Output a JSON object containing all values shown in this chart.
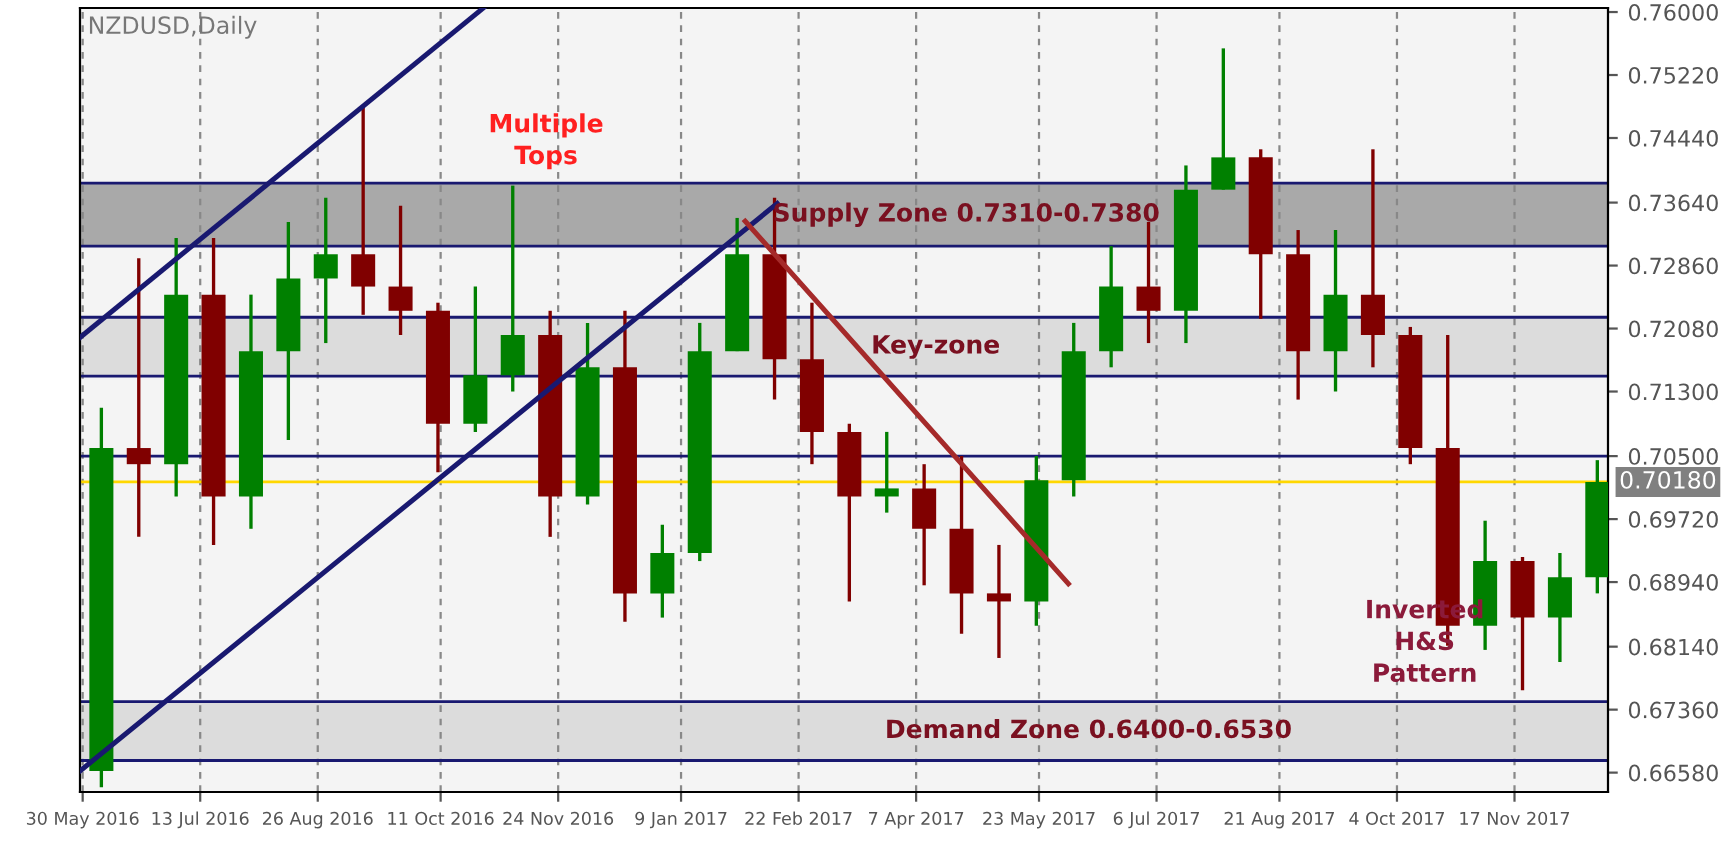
{
  "chart_data": {
    "type": "candlestick",
    "title": "NZDUSD,Daily",
    "x": [
      "2016-06-06",
      "2016-06-20",
      "2016-07-04",
      "2016-07-18",
      "2016-08-01",
      "2016-08-15",
      "2016-08-29",
      "2016-09-12",
      "2016-09-26",
      "2016-10-10",
      "2016-10-24",
      "2016-11-07",
      "2016-11-21",
      "2016-12-05",
      "2016-12-19",
      "2017-01-02",
      "2017-01-16",
      "2017-01-30",
      "2017-02-13",
      "2017-02-27",
      "2017-03-13",
      "2017-03-27",
      "2017-04-10",
      "2017-04-24",
      "2017-05-08",
      "2017-05-22",
      "2017-06-05",
      "2017-06-19",
      "2017-07-03",
      "2017-07-17",
      "2017-07-31",
      "2017-08-14",
      "2017-08-28",
      "2017-09-11",
      "2017-09-25",
      "2017-10-09",
      "2017-10-23",
      "2017-11-06",
      "2017-11-20",
      "2017-12-04",
      "2017-12-18"
    ],
    "ohlc": [
      [
        0.666,
        0.711,
        0.664,
        0.706
      ],
      [
        0.706,
        0.7295,
        0.695,
        0.704
      ],
      [
        0.704,
        0.732,
        0.7,
        0.725
      ],
      [
        0.725,
        0.732,
        0.694,
        0.7
      ],
      [
        0.7,
        0.725,
        0.696,
        0.718
      ],
      [
        0.718,
        0.734,
        0.707,
        0.727
      ],
      [
        0.727,
        0.737,
        0.719,
        0.73
      ],
      [
        0.73,
        0.7485,
        0.7225,
        0.726
      ],
      [
        0.726,
        0.736,
        0.72,
        0.723
      ],
      [
        0.723,
        0.724,
        0.703,
        0.709
      ],
      [
        0.709,
        0.726,
        0.708,
        0.715
      ],
      [
        0.715,
        0.7385,
        0.713,
        0.72
      ],
      [
        0.72,
        0.723,
        0.695,
        0.7
      ],
      [
        0.7,
        0.7215,
        0.699,
        0.716
      ],
      [
        0.716,
        0.723,
        0.6845,
        0.688
      ],
      [
        0.688,
        0.6965,
        0.685,
        0.693
      ],
      [
        0.693,
        0.7215,
        0.692,
        0.718
      ],
      [
        0.718,
        0.7345,
        0.718,
        0.73
      ],
      [
        0.73,
        0.737,
        0.712,
        0.717
      ],
      [
        0.717,
        0.724,
        0.704,
        0.708
      ],
      [
        0.708,
        0.709,
        0.687,
        0.7
      ],
      [
        0.7,
        0.708,
        0.698,
        0.701
      ],
      [
        0.701,
        0.704,
        0.689,
        0.696
      ],
      [
        0.696,
        0.705,
        0.683,
        0.688
      ],
      [
        0.688,
        0.694,
        0.68,
        0.687
      ],
      [
        0.687,
        0.705,
        0.684,
        0.702
      ],
      [
        0.702,
        0.7215,
        0.7,
        0.718
      ],
      [
        0.718,
        0.731,
        0.716,
        0.726
      ],
      [
        0.726,
        0.734,
        0.719,
        0.723
      ],
      [
        0.723,
        0.741,
        0.719,
        0.738
      ],
      [
        0.738,
        0.7555,
        0.738,
        0.742
      ],
      [
        0.742,
        0.743,
        0.722,
        0.73
      ],
      [
        0.73,
        0.733,
        0.712,
        0.718
      ],
      [
        0.718,
        0.733,
        0.713,
        0.725
      ],
      [
        0.725,
        0.743,
        0.716,
        0.72
      ],
      [
        0.72,
        0.721,
        0.704,
        0.706
      ],
      [
        0.706,
        0.72,
        0.6815,
        0.684
      ],
      [
        0.684,
        0.697,
        0.681,
        0.692
      ],
      [
        0.692,
        0.6925,
        0.676,
        0.685
      ],
      [
        0.685,
        0.693,
        0.6795,
        0.69
      ],
      [
        0.69,
        0.7045,
        0.688,
        0.7018
      ]
    ],
    "colors": [
      "#008000",
      "#800000",
      "#008000",
      "#800000",
      "#008000",
      "#008000",
      "#008000",
      "#800000",
      "#800000",
      "#800000",
      "#008000",
      "#008000",
      "#800000",
      "#008000",
      "#800000",
      "#008000",
      "#008000",
      "#008000",
      "#800000",
      "#800000",
      "#800000",
      "#008000",
      "#800000",
      "#800000",
      "#800000",
      "#008000",
      "#008000",
      "#008000",
      "#800000",
      "#008000",
      "#008000",
      "#800000",
      "#800000",
      "#008000",
      "#800000",
      "#800000",
      "#800000",
      "#008000",
      "#800000",
      "#008000",
      "#008000"
    ],
    "series": [
      {
        "type": "line",
        "color": "#191970",
        "x": [
          "2016-05-29",
          "2016-10-27"
        ],
        "values": [
          0.7197,
          0.7605
        ]
      },
      {
        "type": "line",
        "color": "#191970",
        "x": [
          "2016-05-29",
          "2017-02-14"
        ],
        "values": [
          0.666,
          0.7363
        ]
      },
      {
        "type": "line",
        "color": "#a52a2a",
        "x": [
          "2017-02-02",
          "2017-06-03"
        ],
        "values": [
          0.7341,
          0.6892
        ]
      }
    ],
    "bands": [
      {
        "axis": "y",
        "from": 0.731,
        "to": 0.7388,
        "label": "Supply Zone 0.7310-0.7380",
        "color": "#a9a9a9"
      },
      {
        "axis": "y",
        "from": 0.7149,
        "to": 0.7222,
        "label": "Key-zone",
        "color": "#dcdcdc"
      },
      {
        "axis": "y",
        "from": 0.6673,
        "to": 0.6746,
        "label": "Demand Zone 0.6400-0.6530",
        "color": "#dcdcdc"
      }
    ],
    "ref_lines": [
      {
        "axis": "y",
        "value": 0.7388,
        "color": "#191970"
      },
      {
        "axis": "y",
        "value": 0.731,
        "color": "#191970"
      },
      {
        "axis": "y",
        "value": 0.7222,
        "color": "#191970"
      },
      {
        "axis": "y",
        "value": 0.7149,
        "color": "#191970"
      },
      {
        "axis": "y",
        "value": 0.6746,
        "color": "#191970"
      },
      {
        "axis": "y",
        "value": 0.6673,
        "color": "#191970"
      },
      {
        "axis": "y",
        "value": 0.705,
        "color": "#191970"
      },
      {
        "axis": "y",
        "value": 0.7018,
        "label": "0.70180",
        "color": "#ffd700"
      }
    ],
    "annotations": [
      "Multiple\nTops",
      "Inverted\nH&S\nPattern"
    ],
    "xlim": [
      "2016-05-29",
      "2017-12-22"
    ],
    "xticks": [
      {
        "value": "2016-05-30",
        "label": "30 May 2016"
      },
      {
        "value": "2016-07-13",
        "label": "13 Jul 2016"
      },
      {
        "value": "2016-08-26",
        "label": "26 Aug 2016"
      },
      {
        "value": "2016-10-11",
        "label": "11 Oct 2016"
      },
      {
        "value": "2016-11-24",
        "label": "24 Nov 2016"
      },
      {
        "value": "2017-01-09",
        "label": "9 Jan 2017"
      },
      {
        "value": "2017-02-22",
        "label": "22 Feb 2017"
      },
      {
        "value": "2017-04-07",
        "label": "7 Apr 2017"
      },
      {
        "value": "2017-05-23",
        "label": "23 May 2017"
      },
      {
        "value": "2017-07-06",
        "label": "6 Jul 2017"
      },
      {
        "value": "2017-08-21",
        "label": "21 Aug 2017"
      },
      {
        "value": "2017-10-04",
        "label": "4 Oct 2017"
      },
      {
        "value": "2017-11-17",
        "label": "17 Nov 2017"
      }
    ],
    "ylim": [
      0.6634,
      0.7605
    ],
    "yticks": [
      {
        "value": 0.6658,
        "label": "0.66580"
      },
      {
        "value": 0.6736,
        "label": "0.67360"
      },
      {
        "value": 0.6814,
        "label": "0.68140"
      },
      {
        "value": 0.6894,
        "label": "0.68940"
      },
      {
        "value": 0.6972,
        "label": "0.69720"
      },
      {
        "value": 0.705,
        "label": "0.70500"
      },
      {
        "value": 0.713,
        "label": "0.71300"
      },
      {
        "value": 0.7208,
        "label": "0.72080"
      },
      {
        "value": 0.7286,
        "label": "0.72860"
      },
      {
        "value": 0.7364,
        "label": "0.73640"
      },
      {
        "value": 0.7444,
        "label": "0.74440"
      },
      {
        "value": 0.7522,
        "label": "0.75220"
      },
      {
        "value": 0.76,
        "label": "0.76000"
      }
    ],
    "grid": "x"
  }
}
